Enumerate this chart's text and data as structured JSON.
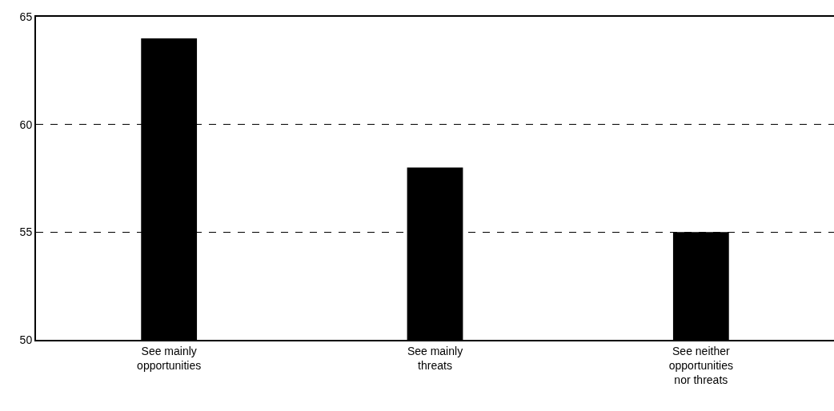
{
  "chart_data": {
    "type": "bar",
    "categories": [
      "See mainly\nopportunities",
      "See mainly\nthreats",
      "See neither\nopportunities\nnor threats"
    ],
    "values": [
      64,
      58,
      55
    ],
    "color": "#000000",
    "ylim": [
      50,
      65
    ],
    "yticks": [
      50,
      55,
      60,
      65
    ],
    "grid": "y",
    "line_style": "dashed"
  }
}
